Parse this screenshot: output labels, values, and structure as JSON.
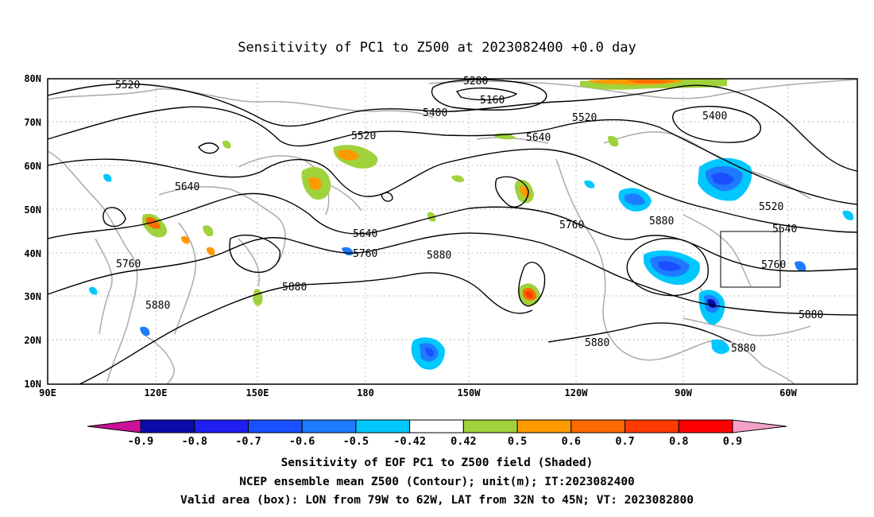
{
  "title": "Sensitivity of PC1 to Z500 at 2023082400 +0.0 day",
  "map": {
    "lon_labels": [
      "90E",
      "120E",
      "150E",
      "180",
      "150W",
      "120W",
      "90W",
      "60W"
    ],
    "lat_labels": [
      "80N",
      "70N",
      "60N",
      "50N",
      "40N",
      "30N",
      "20N",
      "10N"
    ],
    "contour_labels": [
      "5520",
      "5280",
      "5160",
      "5400",
      "5520",
      "5400",
      "5520",
      "5640",
      "5640",
      "5640",
      "5760",
      "5880",
      "5640",
      "5760",
      "5880",
      "5520",
      "5640",
      "5760",
      "5880",
      "5880",
      "5880",
      "5880",
      "5760",
      "5880"
    ],
    "box": {
      "lon_from": "79W",
      "lon_to": "62W",
      "lat_from": "32N",
      "lat_to": "45N"
    }
  },
  "colorbar": {
    "labels": [
      "-0.9",
      "-0.8",
      "-0.7",
      "-0.6",
      "-0.5",
      "-0.42",
      "0.42",
      "0.5",
      "0.6",
      "0.7",
      "0.8",
      "0.9"
    ],
    "colors": [
      "#0b0ba8",
      "#1f1ff4",
      "#1a4fff",
      "#1e7bff",
      "#00c8ff",
      "#ffffff",
      "#a0d23c",
      "#ff9900",
      "#ff6a00",
      "#ff3a00",
      "#ff0000"
    ],
    "left_arrow": "#cc1199",
    "right_arrow": "#f5a0c8"
  },
  "captions": [
    "Sensitivity of EOF PC1 to Z500 field (Shaded)",
    "NCEP ensemble mean Z500 (Contour); unit(m); IT:2023082400",
    "Valid area (box): LON from 79W to 62W, LAT from 32N to 45N; VT: 2023082800"
  ]
}
